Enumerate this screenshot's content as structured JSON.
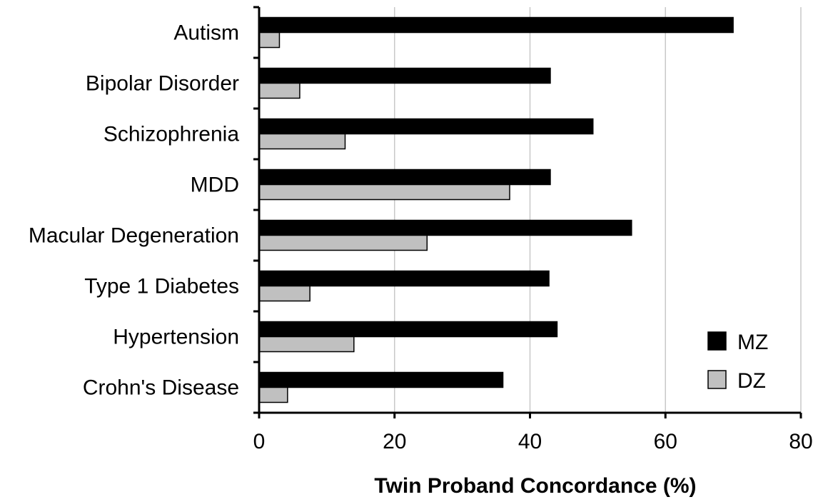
{
  "chart_data": {
    "type": "bar",
    "orientation": "horizontal",
    "categories": [
      "Autism",
      "Bipolar Disorder",
      "Schizophrenia",
      "MDD",
      "Macular Degeneration",
      "Type 1 Diabetes",
      "Hypertension",
      "Crohn's Disease"
    ],
    "series": [
      {
        "name": "MZ",
        "color": "#000000",
        "values": [
          70,
          43,
          49.3,
          43,
          55,
          42.8,
          44,
          36
        ]
      },
      {
        "name": "DZ",
        "color": "#c0c0c0",
        "values": [
          3,
          6,
          12.7,
          37,
          24.8,
          7.5,
          14,
          4.2
        ]
      }
    ],
    "xlabel": "Twin Proband Concordance (%)",
    "ylabel": "",
    "xlim": [
      0,
      80
    ],
    "xticks": [
      0,
      20,
      40,
      60,
      80
    ],
    "xtick_labels": [
      "0",
      "20",
      "40",
      "60",
      "80"
    ],
    "grid": "vertical",
    "legend_position": "bottom-right"
  }
}
